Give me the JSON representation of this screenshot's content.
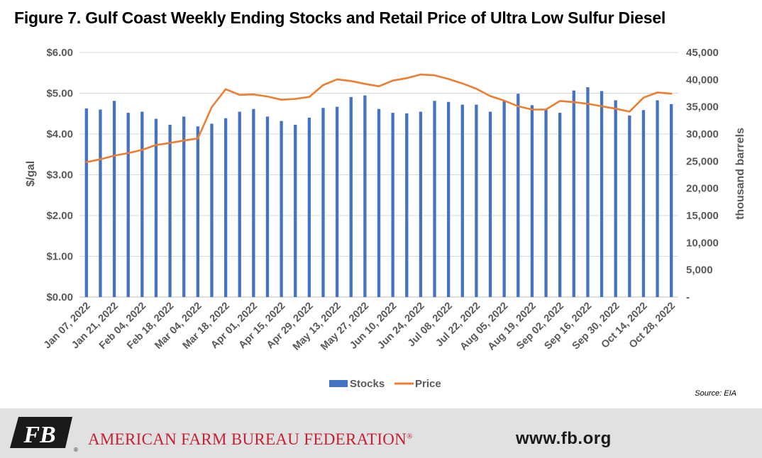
{
  "title": "Figure 7. Gulf Coast Weekly Ending Stocks and Retail Price of Ultra Low Sulfur Diesel",
  "source": "Source: EIA",
  "footer": {
    "organization": "AMERICAN FARM BUREAU FEDERATION",
    "registered_mark": "®",
    "website": "www.fb.org",
    "logo_text": "FB",
    "brand_color": "#c8202f"
  },
  "chart_data": {
    "type": "bar",
    "title": "Figure 7. Gulf Coast Weekly Ending Stocks and Retail Price of Ultra Low Sulfur Diesel",
    "ylabel_left": "$/gal",
    "ylabel_right": "thousand barrels",
    "left_ylim": [
      0,
      6
    ],
    "right_ylim": [
      0,
      45000
    ],
    "left_ticks": [
      "$0.00",
      "$1.00",
      "$2.00",
      "$3.00",
      "$4.00",
      "$5.00",
      "$6.00"
    ],
    "right_ticks": [
      "-",
      "5,000",
      "10,000",
      "15,000",
      "20,000",
      "25,000",
      "30,000",
      "35,000",
      "40,000",
      "45,000"
    ],
    "grid": true,
    "legend_position": "bottom",
    "x_tick_labels": [
      "Jan 07, 2022",
      "Jan 21, 2022",
      "Feb 04, 2022",
      "Feb 18, 2022",
      "Mar 04, 2022",
      "Mar 18, 2022",
      "Apr 01, 2022",
      "Apr 15, 2022",
      "Apr 29, 2022",
      "May 13, 2022",
      "May 27, 2022",
      "Jun 10, 2022",
      "Jun 24, 2022",
      "Jul 08, 2022",
      "Jul 22, 2022",
      "Aug 05, 2022",
      "Aug 19, 2022",
      "Sep 02, 2022",
      "Sep 16, 2022",
      "Sep 30, 2022",
      "Oct 14, 2022",
      "Oct 28, 2022"
    ],
    "series": [
      {
        "name": "Stocks",
        "type": "bar",
        "axis": "right",
        "color": "#4472c4",
        "values": [
          34700,
          34500,
          36100,
          33900,
          34100,
          32800,
          31700,
          33200,
          31400,
          31900,
          32900,
          34100,
          34600,
          33200,
          32400,
          31700,
          33000,
          34800,
          35000,
          36800,
          37100,
          34600,
          33900,
          33800,
          34100,
          36100,
          35900,
          35400,
          35400,
          34100,
          36100,
          37400,
          35300,
          34500,
          33900,
          38000,
          38600,
          37900,
          36200,
          33400,
          34400,
          36200,
          35500
        ]
      },
      {
        "name": "Price",
        "type": "line",
        "axis": "left",
        "color": "#ed7d31",
        "values": [
          3.31,
          3.38,
          3.47,
          3.53,
          3.61,
          3.73,
          3.78,
          3.84,
          3.89,
          4.66,
          5.1,
          4.96,
          4.97,
          4.92,
          4.84,
          4.86,
          4.91,
          5.2,
          5.34,
          5.3,
          5.23,
          5.17,
          5.31,
          5.37,
          5.46,
          5.44,
          5.35,
          5.24,
          5.11,
          4.93,
          4.82,
          4.68,
          4.6,
          4.6,
          4.81,
          4.78,
          4.74,
          4.68,
          4.62,
          4.55,
          4.89,
          5.02,
          4.99
        ]
      }
    ]
  }
}
